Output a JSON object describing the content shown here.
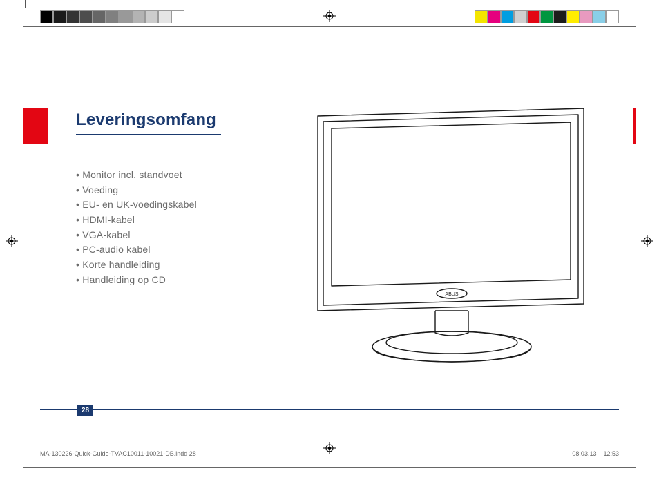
{
  "colors": {
    "heading": "#1b3a6f",
    "body_text": "#6a6a6a",
    "rule": "#1b3a6f",
    "red_tab": "#e30613",
    "slug_text": "#666666",
    "illustration_stroke": "#1a1a1a"
  },
  "printer_bars": {
    "grays": [
      "#000000",
      "#1a1a1a",
      "#333333",
      "#4d4d4d",
      "#666666",
      "#808080",
      "#999999",
      "#b3b3b3",
      "#cccccc",
      "#e5e5e5",
      "#ffffff"
    ],
    "gray_border": "#999999",
    "colors": [
      "#f4e500",
      "#e6007e",
      "#009ee0",
      "#d0d0d0",
      "#e30613",
      "#009640",
      "#1d1d1b",
      "#ffed00",
      "#e89abf",
      "#89cfe8",
      "#ffffff"
    ],
    "color_border": "#999999"
  },
  "heading": "Leveringsomfang",
  "items": [
    "Monitor incl. standvoet",
    "Voeding",
    "EU- en UK-voedingskabel",
    "HDMI-kabel",
    "VGA-kabel",
    "PC-audio kabel",
    "Korte handleiding",
    "Handleiding op CD"
  ],
  "page_number": "28",
  "slug": {
    "file": "MA-130226-Quick-Guide-TVAC10011-10021-DB.indd   28",
    "date": "08.03.13",
    "time": "12:53"
  },
  "illustration": {
    "brand_label": "ABUS"
  }
}
